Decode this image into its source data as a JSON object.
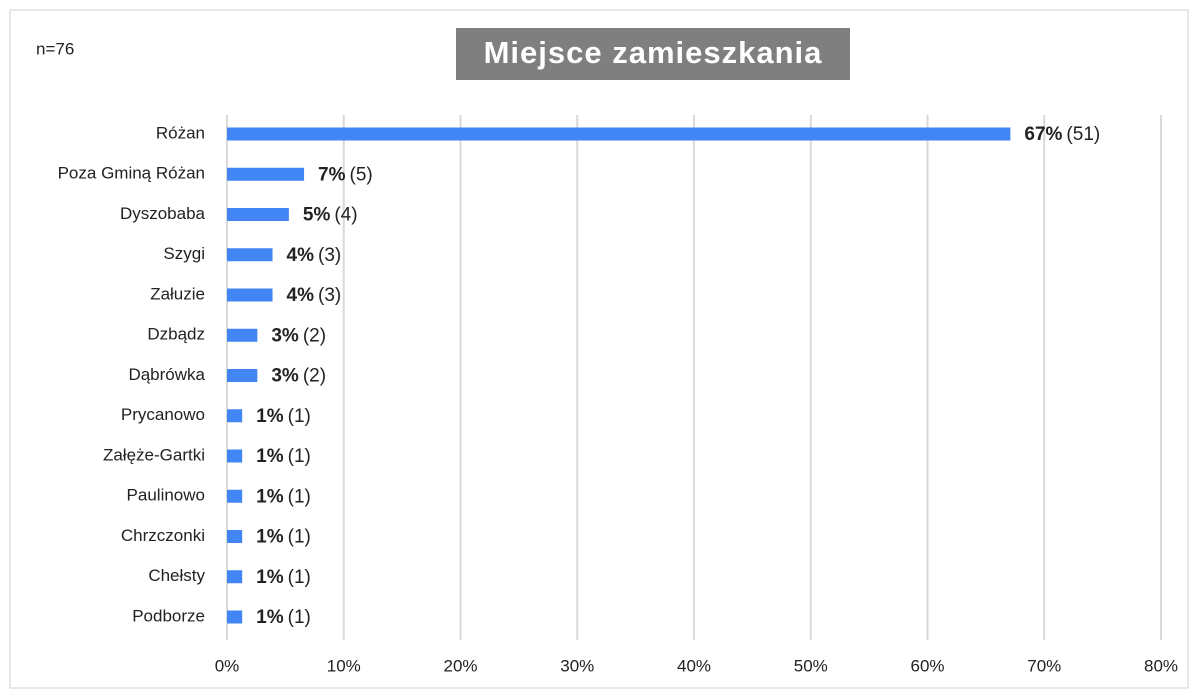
{
  "chart_data": {
    "type": "bar",
    "orientation": "horizontal",
    "title": "Miejsce zamieszkania",
    "annotation": "n=76",
    "categories": [
      "Różan",
      "Poza Gminą Różan",
      "Dyszobaba",
      "Szygi",
      "Załuzie",
      "Dzbądz",
      "Dąbrówka",
      "Prycanowo",
      "Załęże-Gartki",
      "Paulinowo",
      "Chrzczonki",
      "Chełsty",
      "Podborze"
    ],
    "values": [
      67.1,
      6.6,
      5.3,
      3.9,
      3.9,
      2.6,
      2.6,
      1.3,
      1.3,
      1.3,
      1.3,
      1.3,
      1.3
    ],
    "value_labels": [
      "67%",
      "7%",
      "5%",
      "4%",
      "4%",
      "3%",
      "3%",
      "1%",
      "1%",
      "1%",
      "1%",
      "1%",
      "1%"
    ],
    "count_labels": [
      "(51)",
      "(5)",
      "(4)",
      "(3)",
      "(3)",
      "(2)",
      "(2)",
      "(1)",
      "(1)",
      "(1)",
      "(1)",
      "(1)",
      "(1)"
    ],
    "color": "#4285f4",
    "xlim": [
      0,
      80
    ],
    "xticks": [
      {
        "value": 0,
        "label": "0%"
      },
      {
        "value": 10,
        "label": "10%"
      },
      {
        "value": 20,
        "label": "20%"
      },
      {
        "value": 30,
        "label": "30%"
      },
      {
        "value": 40,
        "label": "40%"
      },
      {
        "value": 50,
        "label": "50%"
      },
      {
        "value": 60,
        "label": "60%"
      },
      {
        "value": 70,
        "label": "70%"
      },
      {
        "value": 80,
        "label": "80%"
      }
    ],
    "grid": true
  }
}
